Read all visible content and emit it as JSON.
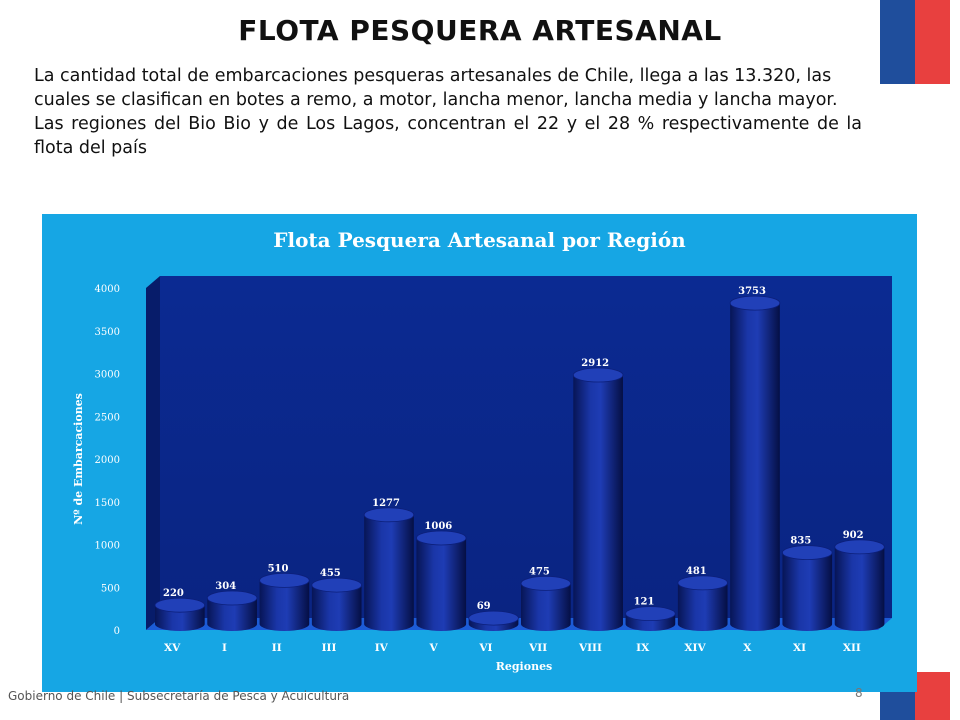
{
  "slide": {
    "title": "FLOTA PESQUERA ARTESANAL",
    "paragraph_1": "La cantidad total de embarcaciones pesqueras artesanales de Chile, llega a las 13.320, las cuales se clasifican en botes a remo, a motor, lancha menor, lancha media y lancha mayor.",
    "paragraph_2": "Las regiones del Bio Bio y de Los Lagos, concentran el 22 y el 28 % respectivamente de la flota del país",
    "footer": "Gobierno de Chile | Subsecretaría de Pesca y Acuicultura",
    "page_number": "8"
  },
  "colors": {
    "flag_blue": "#1f4e9c",
    "flag_red": "#e8403f",
    "panel_bg": "#16a6e4",
    "plot_bg": "#0a2a8c",
    "bar_fill": "#0b1f78"
  },
  "chart_data": {
    "type": "bar",
    "title": "Flota Pesquera Artesanal por Región",
    "xlabel": "Regiones",
    "ylabel": "Nº de Embarcaciones",
    "ylim": [
      0,
      4000
    ],
    "yticks": [
      0,
      500,
      1000,
      1500,
      2000,
      2500,
      3000,
      3500,
      4000
    ],
    "categories": [
      "XV",
      "I",
      "II",
      "III",
      "IV",
      "V",
      "VI",
      "VII",
      "VIII",
      "IX",
      "XIV",
      "X",
      "XI",
      "XII"
    ],
    "values": [
      220,
      304,
      510,
      455,
      1277,
      1006,
      69,
      475,
      2912,
      121,
      481,
      3753,
      835,
      902
    ],
    "grid": false,
    "legend": "none",
    "style": "3d-cylinder"
  }
}
